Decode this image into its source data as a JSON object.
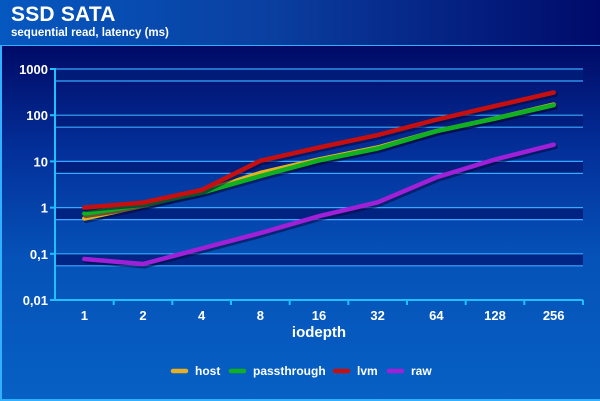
{
  "chart_data": {
    "type": "line",
    "title": "SSD SATA",
    "subtitle": "sequential read, latency (ms)",
    "xlabel": "iodepth",
    "ylabel": "",
    "yscale": "log",
    "ylim": [
      0.01,
      1000
    ],
    "yticks": [
      "1000",
      "100",
      "10",
      "1",
      "0,1",
      "0,01"
    ],
    "ytick_values": [
      1000,
      100,
      10,
      1,
      0.1,
      0.01
    ],
    "categories": [
      "1",
      "2",
      "4",
      "8",
      "16",
      "32",
      "64",
      "128",
      "256"
    ],
    "grid": true,
    "legend_position": "bottom",
    "series": [
      {
        "name": "host",
        "color": "#e8b020",
        "values": [
          0.58,
          1.1,
          2.2,
          5.6,
          11,
          20,
          45,
          85,
          170
        ]
      },
      {
        "name": "passthrough",
        "color": "#10b020",
        "values": [
          0.74,
          1.15,
          2.1,
          4.8,
          10.5,
          19,
          45,
          85,
          165
        ]
      },
      {
        "name": "lvm",
        "color": "#c80f10",
        "values": [
          1.0,
          1.28,
          2.4,
          10.3,
          20,
          37,
          80,
          158,
          310
        ]
      },
      {
        "name": "raw",
        "color": "#a020d8",
        "values": [
          0.077,
          0.06,
          0.13,
          0.28,
          0.65,
          1.3,
          4.5,
          11,
          23
        ]
      }
    ]
  }
}
